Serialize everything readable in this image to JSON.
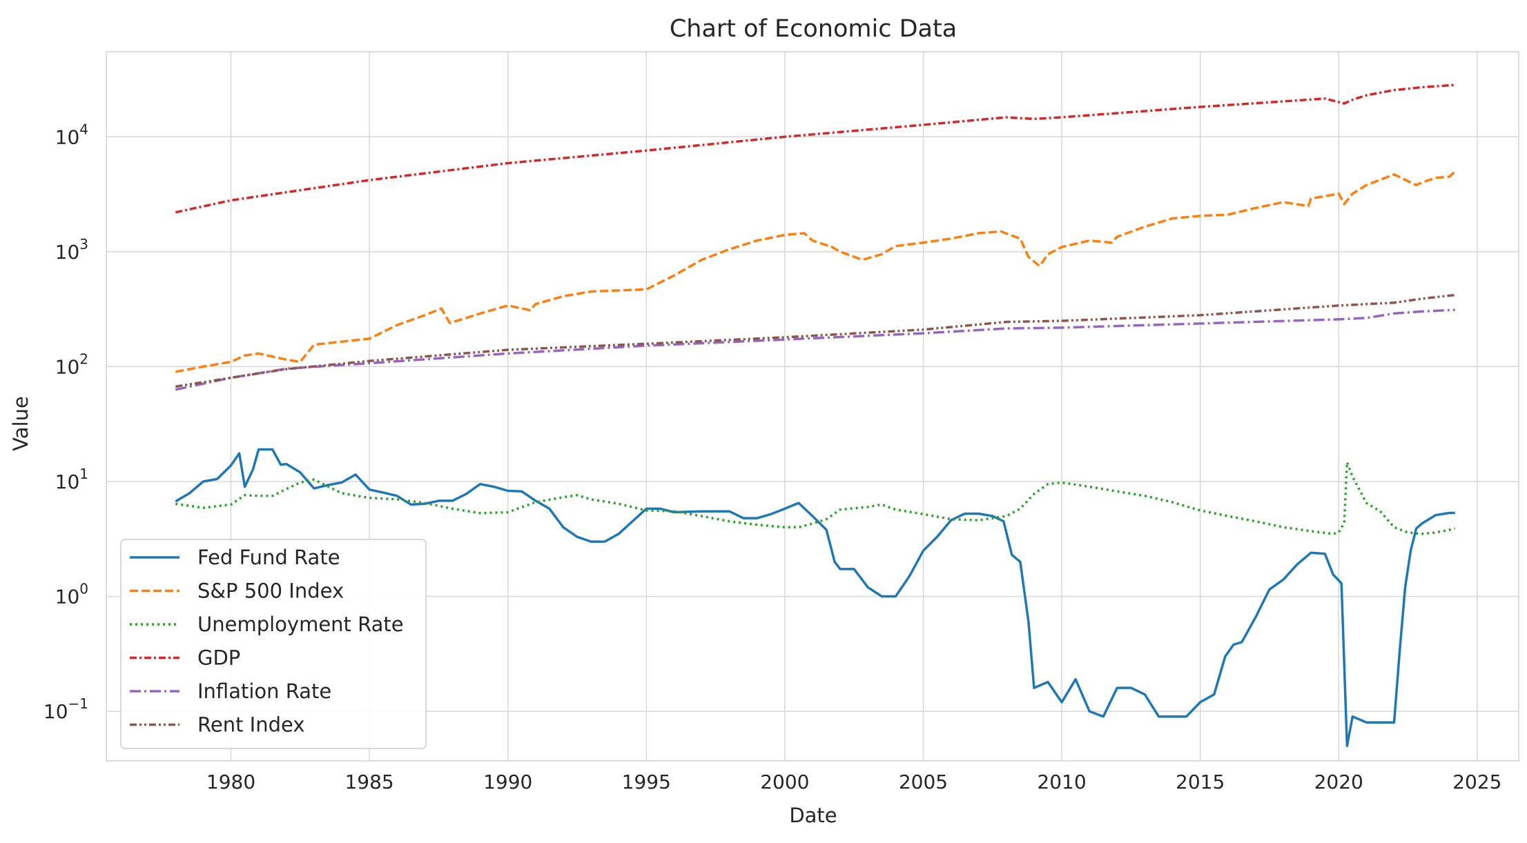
{
  "chart_data": {
    "type": "line",
    "title": "Chart of Economic Data",
    "xlabel": "Date",
    "ylabel": "Value",
    "yscale": "log",
    "xlim": [
      1975.5,
      2026.5
    ],
    "ylim": [
      0.037,
      55000
    ],
    "x_ticks": [
      1980,
      1985,
      1990,
      1995,
      2000,
      2005,
      2010,
      2015,
      2020,
      2025
    ],
    "x_tick_labels": [
      "1980",
      "1985",
      "1990",
      "1995",
      "2000",
      "2005",
      "2010",
      "2015",
      "2020",
      "2025"
    ],
    "y_ticks": [
      {
        "value": 0.1,
        "base": "10",
        "exp": "−1"
      },
      {
        "value": 1,
        "base": "10",
        "exp": "0"
      },
      {
        "value": 10,
        "base": "10",
        "exp": "1"
      },
      {
        "value": 100,
        "base": "10",
        "exp": "2"
      },
      {
        "value": 1000,
        "base": "10",
        "exp": "3"
      },
      {
        "value": 10000,
        "base": "10",
        "exp": "4"
      }
    ],
    "grid": true,
    "legend_position": "lower-left",
    "series": [
      {
        "name": "Fed Fund Rate",
        "color": "#1f77b4",
        "dash": "solid",
        "x": [
          1978.0,
          1978.5,
          1979.0,
          1979.5,
          1980.0,
          1980.3,
          1980.5,
          1980.8,
          1981.0,
          1981.5,
          1981.8,
          1982.0,
          1982.5,
          1983.0,
          1983.5,
          1984.0,
          1984.5,
          1985.0,
          1985.5,
          1986.0,
          1986.5,
          1987.0,
          1987.5,
          1988.0,
          1988.5,
          1989.0,
          1989.5,
          1990.0,
          1990.5,
          1991.0,
          1991.5,
          1992.0,
          1992.5,
          1993.0,
          1993.5,
          1994.0,
          1994.5,
          1995.0,
          1995.5,
          1996.0,
          1997.0,
          1998.0,
          1998.5,
          1999.0,
          1999.5,
          2000.0,
          2000.5,
          2001.0,
          2001.5,
          2001.8,
          2002.0,
          2002.5,
          2003.0,
          2003.5,
          2004.0,
          2004.5,
          2005.0,
          2005.5,
          2006.0,
          2006.5,
          2007.0,
          2007.5,
          2007.9,
          2008.2,
          2008.5,
          2008.8,
          2009.0,
          2009.5,
          2010.0,
          2010.5,
          2011.0,
          2011.5,
          2012.0,
          2012.5,
          2013.0,
          2013.5,
          2014.0,
          2014.5,
          2015.0,
          2015.5,
          2015.9,
          2016.2,
          2016.5,
          2017.0,
          2017.5,
          2018.0,
          2018.5,
          2019.0,
          2019.5,
          2019.8,
          2020.1,
          2020.3,
          2020.5,
          2021.0,
          2021.5,
          2022.0,
          2022.2,
          2022.4,
          2022.6,
          2022.8,
          2023.0,
          2023.5,
          2024.0,
          2024.2
        ],
        "y": [
          6.7,
          7.9,
          10.0,
          10.5,
          13.8,
          17.6,
          9.0,
          12.8,
          19.0,
          19.0,
          14.0,
          14.2,
          12.0,
          8.7,
          9.3,
          9.8,
          11.5,
          8.5,
          8.0,
          7.5,
          6.3,
          6.4,
          6.8,
          6.8,
          7.8,
          9.5,
          9.0,
          8.3,
          8.2,
          6.8,
          5.8,
          4.0,
          3.3,
          3.0,
          3.0,
          3.5,
          4.5,
          5.8,
          5.8,
          5.4,
          5.5,
          5.5,
          4.8,
          4.8,
          5.2,
          5.8,
          6.5,
          5.0,
          3.8,
          2.0,
          1.73,
          1.73,
          1.2,
          1.0,
          1.0,
          1.5,
          2.5,
          3.3,
          4.6,
          5.25,
          5.25,
          5.0,
          4.5,
          2.3,
          2.0,
          0.6,
          0.16,
          0.18,
          0.12,
          0.19,
          0.1,
          0.09,
          0.16,
          0.16,
          0.14,
          0.09,
          0.09,
          0.09,
          0.12,
          0.14,
          0.3,
          0.38,
          0.4,
          0.66,
          1.15,
          1.4,
          1.9,
          2.4,
          2.35,
          1.55,
          1.3,
          0.05,
          0.09,
          0.08,
          0.08,
          0.08,
          0.33,
          1.2,
          2.5,
          3.9,
          4.3,
          5.1,
          5.33,
          5.33
        ]
      },
      {
        "name": "S&P 500 Index",
        "color": "#ff7f0e",
        "dash": "dashed",
        "x": [
          1978.0,
          1979.0,
          1980.0,
          1980.5,
          1981.0,
          1982.0,
          1982.5,
          1983.0,
          1984.0,
          1985.0,
          1986.0,
          1987.0,
          1987.6,
          1987.9,
          1988.5,
          1989.0,
          1990.0,
          1990.8,
          1991.0,
          1992.0,
          1993.0,
          1994.0,
          1995.0,
          1996.0,
          1997.0,
          1998.0,
          1999.0,
          2000.0,
          2000.7,
          2001.0,
          2001.7,
          2002.0,
          2002.8,
          2003.5,
          2004.0,
          2005.0,
          2006.0,
          2007.0,
          2007.8,
          2008.5,
          2008.8,
          2009.2,
          2009.5,
          2010.0,
          2011.0,
          2011.8,
          2012.0,
          2013.0,
          2014.0,
          2015.0,
          2016.0,
          2017.0,
          2018.0,
          2018.9,
          2019.0,
          2020.0,
          2020.2,
          2020.5,
          2021.0,
          2022.0,
          2022.8,
          2023.0,
          2023.5,
          2024.0,
          2024.2
        ],
        "y": [
          90,
          100,
          110,
          125,
          130,
          115,
          110,
          155,
          165,
          175,
          230,
          280,
          320,
          240,
          265,
          290,
          340,
          310,
          350,
          410,
          450,
          460,
          470,
          620,
          850,
          1050,
          1250,
          1400,
          1450,
          1250,
          1100,
          1000,
          850,
          950,
          1120,
          1200,
          1300,
          1450,
          1500,
          1300,
          900,
          750,
          950,
          1100,
          1250,
          1200,
          1350,
          1650,
          1950,
          2050,
          2100,
          2400,
          2700,
          2500,
          2900,
          3200,
          2600,
          3200,
          3800,
          4700,
          3800,
          4000,
          4400,
          4500,
          5000
        ]
      },
      {
        "name": "Unemployment Rate",
        "color": "#2ca02c",
        "dash": "dotted",
        "x": [
          1978.0,
          1979.0,
          1980.0,
          1980.5,
          1981.0,
          1981.5,
          1982.0,
          1982.5,
          1983.0,
          1984.0,
          1985.0,
          1986.0,
          1987.0,
          1988.0,
          1989.0,
          1990.0,
          1991.0,
          1992.0,
          1992.5,
          1993.0,
          1994.0,
          1995.0,
          1996.0,
          1997.0,
          1998.0,
          1999.0,
          2000.0,
          2000.5,
          2001.0,
          2001.5,
          2002.0,
          2003.0,
          2003.5,
          2004.0,
          2005.0,
          2006.0,
          2007.0,
          2008.0,
          2008.5,
          2009.0,
          2009.5,
          2010.0,
          2011.0,
          2012.0,
          2013.0,
          2014.0,
          2015.0,
          2016.0,
          2017.0,
          2018.0,
          2019.0,
          2019.8,
          2020.0,
          2020.2,
          2020.3,
          2020.5,
          2021.0,
          2021.5,
          2022.0,
          2022.5,
          2023.0,
          2023.5,
          2024.0,
          2024.2
        ],
        "y": [
          6.4,
          5.9,
          6.3,
          7.6,
          7.5,
          7.5,
          8.6,
          9.8,
          10.4,
          7.9,
          7.2,
          7.0,
          6.5,
          5.8,
          5.3,
          5.4,
          6.6,
          7.3,
          7.6,
          7.0,
          6.4,
          5.6,
          5.5,
          5.0,
          4.5,
          4.2,
          4.0,
          4.0,
          4.3,
          4.7,
          5.7,
          6.0,
          6.3,
          5.7,
          5.2,
          4.7,
          4.6,
          5.0,
          5.8,
          7.8,
          9.5,
          9.8,
          9.0,
          8.2,
          7.5,
          6.6,
          5.6,
          5.0,
          4.5,
          4.0,
          3.7,
          3.5,
          3.6,
          4.4,
          14.7,
          11.0,
          6.5,
          5.5,
          4.0,
          3.6,
          3.5,
          3.6,
          3.8,
          3.9
        ]
      },
      {
        "name": "GDP",
        "color": "#d62728",
        "dash": "dashdot",
        "x": [
          1978.0,
          1980.0,
          1985.0,
          1990.0,
          1995.0,
          2000.0,
          2005.0,
          2008.0,
          2009.0,
          2010.0,
          2015.0,
          2019.5,
          2020.2,
          2020.5,
          2021.0,
          2022.0,
          2023.0,
          2024.2
        ],
        "y": [
          2200,
          2800,
          4200,
          5900,
          7600,
          10000,
          12700,
          14800,
          14300,
          14800,
          18200,
          21500,
          19500,
          21000,
          23000,
          25500,
          27000,
          28300
        ]
      },
      {
        "name": "Inflation Rate",
        "color": "#9467bd",
        "dash": "longdashdot",
        "x": [
          1978.0,
          1980.0,
          1982.0,
          1985.0,
          1990.0,
          1995.0,
          2000.0,
          2005.0,
          2008.0,
          2010.0,
          2015.0,
          2020.0,
          2021.0,
          2022.0,
          2023.0,
          2024.2
        ],
        "y": [
          63,
          80,
          96,
          107,
          130,
          152,
          172,
          195,
          215,
          218,
          237,
          258,
          265,
          290,
          302,
          312
        ]
      },
      {
        "name": "Rent Index",
        "color": "#8c564b",
        "dash": "dashdotdot",
        "x": [
          1978.0,
          1980.0,
          1982.0,
          1985.0,
          1990.0,
          1995.0,
          2000.0,
          2005.0,
          2008.0,
          2010.0,
          2015.0,
          2020.0,
          2022.0,
          2023.0,
          2024.2
        ],
        "y": [
          67,
          80,
          95,
          112,
          140,
          158,
          180,
          210,
          245,
          250,
          280,
          340,
          360,
          390,
          420
        ]
      }
    ]
  }
}
